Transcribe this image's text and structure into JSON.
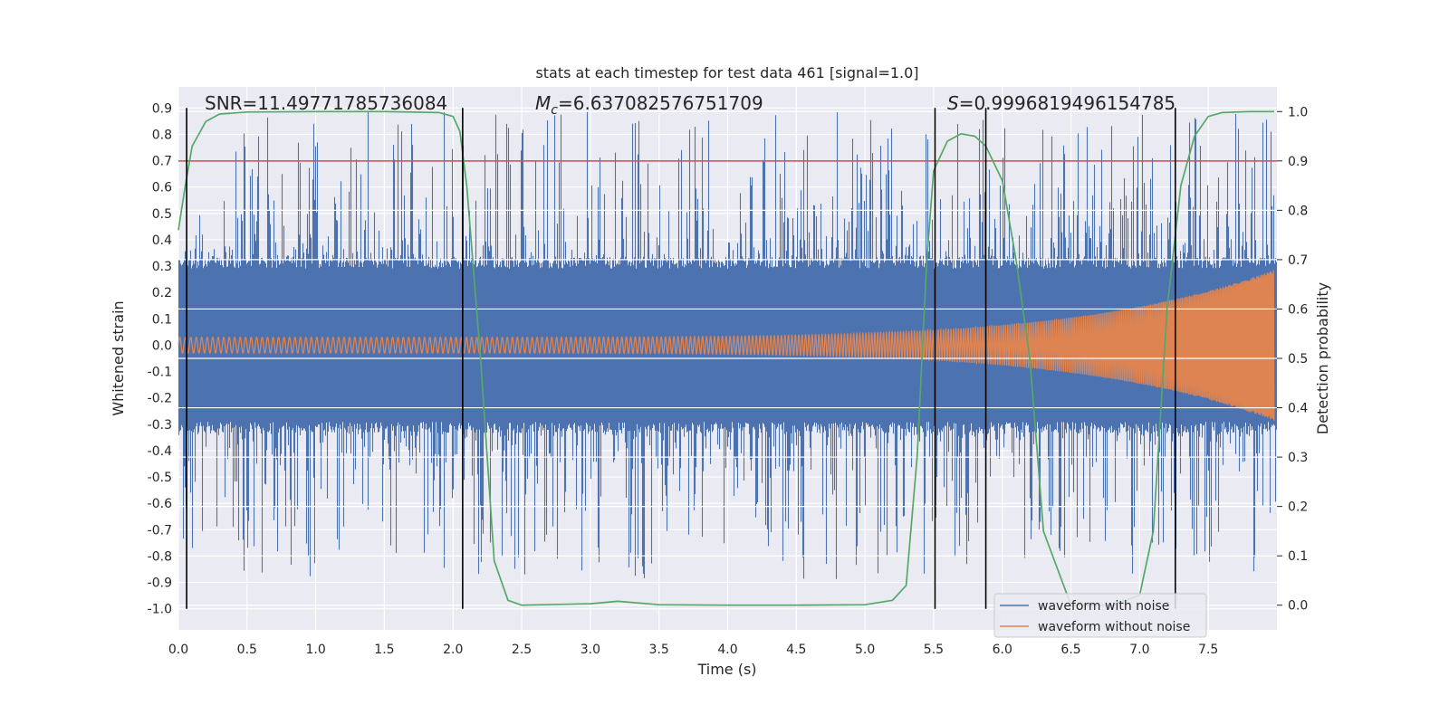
{
  "chart_data": {
    "type": "line",
    "title": "stats at each timestep for test data 461 [signal=1.0]",
    "xlabel": "Time (s)",
    "ylabel": "Whitened strain",
    "ylabel_right": "Detection probability",
    "xlim": [
      0,
      8.0
    ],
    "ylim": [
      -1.08,
      0.98
    ],
    "ylim_right": [
      -0.05,
      1.05
    ],
    "x_ticks": [
      "0.0",
      "0.5",
      "1.0",
      "1.5",
      "2.0",
      "2.5",
      "3.0",
      "3.5",
      "4.0",
      "4.5",
      "5.0",
      "5.5",
      "6.0",
      "6.5",
      "7.0",
      "7.5"
    ],
    "y_ticks": [
      "0.9",
      "0.8",
      "0.7",
      "0.6",
      "0.5",
      "0.4",
      "0.3",
      "0.2",
      "0.1",
      "0.0",
      "-0.1",
      "-0.2",
      "-0.3",
      "-0.4",
      "-0.5",
      "-0.6",
      "-0.7",
      "-0.8",
      "-0.9",
      "-1.0"
    ],
    "y_ticks_right": [
      "1.0",
      "0.9",
      "0.8",
      "0.7",
      "0.6",
      "0.5",
      "0.4",
      "0.3",
      "0.2",
      "0.1",
      "0.0"
    ],
    "grid": true,
    "legend_position": "lower-right",
    "annotations": {
      "snr": "SNR=11.49771785736084",
      "mc_symbol": "M",
      "mc_sub": "c",
      "mc_value": "=6.637082576751709",
      "s_symbol": "S",
      "s_value": "=0.9996819496154785"
    },
    "threshold": 0.9,
    "vertical_lines": [
      0.06,
      2.07,
      5.51,
      5.88,
      7.26
    ],
    "series": [
      {
        "name": "waveform with noise",
        "color": "#4c72b0",
        "typical_amplitude": 0.33,
        "peak_amplitude": 0.89
      },
      {
        "name": "waveform without noise",
        "color": "#dd8452",
        "start_amplitude": 0.03,
        "end_amplitude": 0.29,
        "start_frequency_hz": 25,
        "end_frequency_hz": 110
      },
      {
        "name": "detection probability",
        "color": "#55a868",
        "x": [
          0.0,
          0.05,
          0.1,
          0.2,
          0.3,
          0.5,
          1.0,
          1.5,
          1.9,
          2.0,
          2.05,
          2.1,
          2.2,
          2.3,
          2.4,
          2.5,
          3.0,
          3.2,
          3.5,
          4.0,
          4.5,
          5.0,
          5.2,
          5.3,
          5.38,
          5.45,
          5.5,
          5.6,
          5.7,
          5.8,
          5.88,
          6.0,
          6.1,
          6.2,
          6.3,
          6.5,
          6.8,
          7.0,
          7.1,
          7.2,
          7.3,
          7.4,
          7.5,
          7.6,
          7.8,
          7.98
        ],
        "y": [
          0.76,
          0.85,
          0.93,
          0.98,
          0.995,
          0.999,
          1.0,
          1.0,
          0.998,
          0.99,
          0.96,
          0.85,
          0.5,
          0.09,
          0.01,
          0.0,
          0.003,
          0.008,
          0.001,
          0.0,
          0.0,
          0.001,
          0.01,
          0.04,
          0.3,
          0.7,
          0.88,
          0.94,
          0.955,
          0.95,
          0.93,
          0.86,
          0.7,
          0.5,
          0.15,
          0.0,
          0.0,
          0.02,
          0.15,
          0.6,
          0.85,
          0.95,
          0.99,
          0.998,
          1.0,
          1.0
        ]
      },
      {
        "name": "threshold",
        "color": "#c44e52",
        "value": 0.9
      }
    ]
  }
}
